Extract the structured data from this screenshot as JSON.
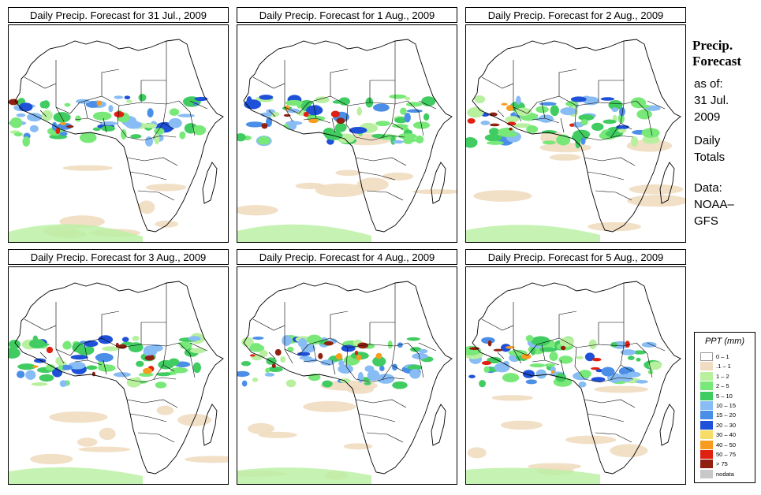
{
  "panels": [
    {
      "title": "Daily Precip. Forecast for  31 Jul., 2009",
      "variant": 0
    },
    {
      "title": "Daily Precip. Forecast for  1 Aug., 2009",
      "variant": 1
    },
    {
      "title": "Daily Precip. Forecast for  2 Aug., 2009",
      "variant": 2
    },
    {
      "title": "Daily Precip. Forecast for  3 Aug., 2009",
      "variant": 3
    },
    {
      "title": "Daily Precip. Forecast for  4 Aug., 2009",
      "variant": 4
    },
    {
      "title": "Daily Precip. Forecast for  5 Aug., 2009",
      "variant": 5
    }
  ],
  "sidebar": {
    "title_line1": "Precip.",
    "title_line2": "Forecast",
    "asof_label": "as of:",
    "date_line1": "31 Jul.",
    "date_line2": "2009",
    "totals_line1": "Daily",
    "totals_line2": "Totals",
    "data_line1": "Data:",
    "data_line2": "NOAA–",
    "data_line3": "GFS"
  },
  "legend": {
    "title": "PPT (mm)",
    "items": [
      {
        "label": "0 – 1",
        "color": "#ffffff"
      },
      {
        "label": ".1 – 1",
        "color": "#f0dcc0"
      },
      {
        "label": "1 – 2",
        "color": "#b8f0a0"
      },
      {
        "label": "2 – 5",
        "color": "#78e878"
      },
      {
        "label": "5 – 10",
        "color": "#40cc60"
      },
      {
        "label": "10 – 15",
        "color": "#88bcf4"
      },
      {
        "label": "15 – 20",
        "color": "#4a8ee8"
      },
      {
        "label": "20 – 30",
        "color": "#1e50d8"
      },
      {
        "label": "30 – 40",
        "color": "#f8dc68"
      },
      {
        "label": "40 – 50",
        "color": "#f89c20"
      },
      {
        "label": "50 – 75",
        "color": "#e02010"
      },
      {
        "label": "> 75",
        "color": "#902010"
      },
      {
        "label": "nodata",
        "color": "#c8c8c8"
      }
    ]
  }
}
